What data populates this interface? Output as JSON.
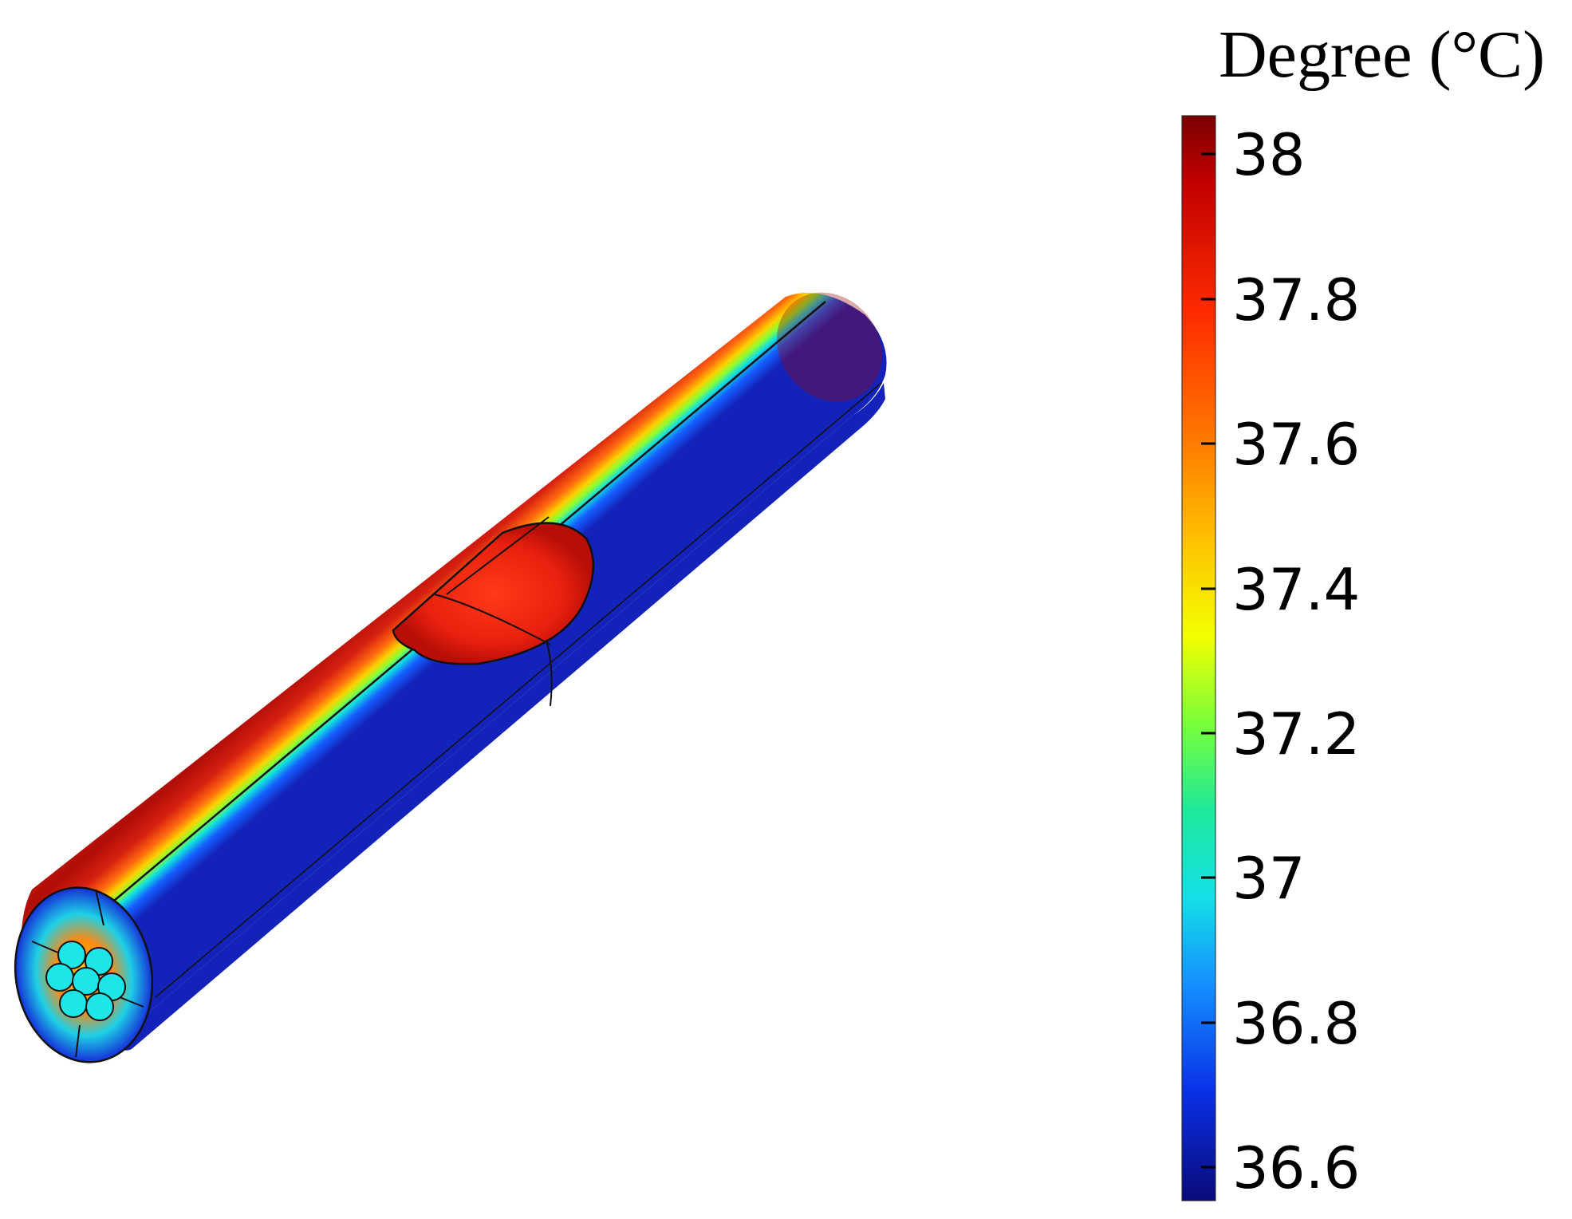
{
  "legend": {
    "title": "Degree (°C)",
    "ticks": [
      "38",
      "37.8",
      "37.6",
      "37.4",
      "37.2",
      "37",
      "36.8",
      "36.6"
    ],
    "colormap": "rainbow"
  },
  "model": {
    "description_colors": {
      "top_surface": "#c81a0c",
      "hot_spot": "#e52a10",
      "bottom_surface": "#1326c4",
      "end_cap_inner": "#1ee6e6"
    }
  }
}
